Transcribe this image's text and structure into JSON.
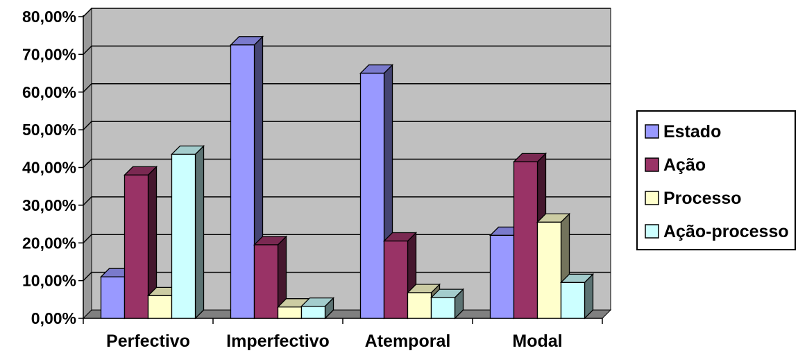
{
  "chart_data": {
    "type": "bar",
    "categories": [
      "Perfectivo",
      "Imperfectivo",
      "Atemporal",
      "Modal"
    ],
    "series": [
      {
        "name": "Estado",
        "values": [
          11.0,
          72.5,
          65.0,
          22.0
        ],
        "color": "#9999ff"
      },
      {
        "name": "Ação",
        "values": [
          38.0,
          19.5,
          20.5,
          41.5
        ],
        "color": "#993366"
      },
      {
        "name": "Processo",
        "values": [
          6.0,
          3.0,
          6.8,
          25.5
        ],
        "color": "#ffffcc"
      },
      {
        "name": "Ação-processo",
        "values": [
          43.5,
          3.2,
          5.5,
          9.5
        ],
        "color": "#ccffff"
      }
    ],
    "y_ticks": [
      "0,00%",
      "10,00%",
      "20,00%",
      "30,00%",
      "40,00%",
      "50,00%",
      "60,00%",
      "70,00%",
      "80,00%"
    ],
    "ylim": [
      0,
      80
    ],
    "plot_area_color": "#c0c0c0",
    "grid": true,
    "legend_position": "right",
    "style": "3d-clustered-column"
  }
}
